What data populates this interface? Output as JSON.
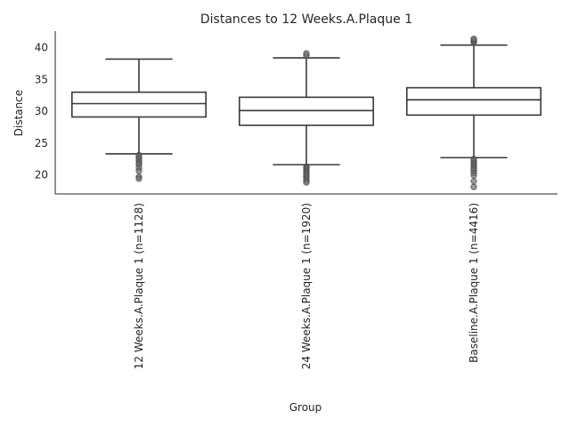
{
  "chart_data": {
    "type": "box",
    "title": "Distances to 12 Weeks.A.Plaque 1",
    "xlabel": "Group",
    "ylabel": "Distance",
    "ylim": [
      17,
      42.6
    ],
    "yticks": [
      20,
      25,
      30,
      35,
      40
    ],
    "grid": false,
    "categories": [
      "12 Weeks.A.Plaque 1 (n=1128)",
      "24 Weeks.A.Plaque 1 (n=1920)",
      "Baseline.A.Plaque 1 (n=4416)"
    ],
    "boxes": [
      {
        "whisker_low": 23.3,
        "q1": 29.1,
        "median": 31.2,
        "q3": 33.0,
        "whisker_high": 38.2,
        "outliers": [
          23.1,
          22.8,
          22.5,
          22.2,
          21.9,
          21.6,
          21.1,
          20.6,
          19.7,
          19.4
        ]
      },
      {
        "whisker_low": 21.6,
        "q1": 27.8,
        "median": 30.1,
        "q3": 32.2,
        "whisker_high": 38.4,
        "outliers": [
          21.3,
          21.1,
          20.9,
          20.6,
          20.3,
          20.0,
          19.7,
          19.4,
          19.1,
          18.8,
          38.8,
          39.1
        ]
      },
      {
        "whisker_low": 22.7,
        "q1": 29.4,
        "median": 31.8,
        "q3": 33.7,
        "whisker_high": 40.4,
        "outliers": [
          22.5,
          22.2,
          21.9,
          21.6,
          21.3,
          21.0,
          20.7,
          20.3,
          19.9,
          19.0,
          18.1,
          40.8,
          41.0,
          41.2,
          41.4
        ]
      }
    ]
  }
}
